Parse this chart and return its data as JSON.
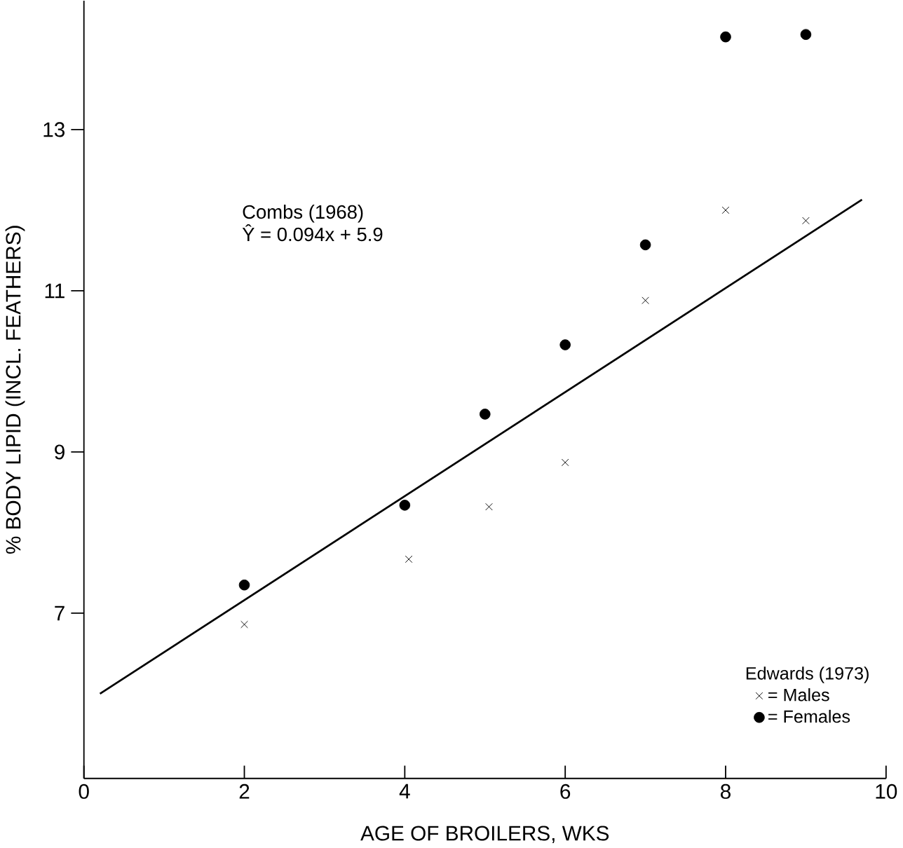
{
  "chart_data": {
    "type": "scatter",
    "xlabel": "AGE OF BROILERS, WKS",
    "ylabel": "% BODY LIPID (INCL. FEATHERS)",
    "legend_title": "Edwards (1973)",
    "annotations": [
      "Combs (1968)",
      "Ŷ = 0.094x + 5.9"
    ],
    "series": [
      {
        "name": "= Males",
        "color": "#000000",
        "marker": "cross",
        "x": [
          2,
          4.05,
          5.05,
          6,
          7,
          8,
          9
        ],
        "values": [
          6.86,
          7.67,
          8.32,
          8.87,
          10.88,
          12.0,
          11.87
        ]
      },
      {
        "name": "= Females",
        "color": "#000000",
        "marker": "circle",
        "x": [
          2,
          4,
          5,
          6,
          7,
          8,
          9
        ],
        "values": [
          7.35,
          8.34,
          9.47,
          10.33,
          11.57,
          14.15,
          14.18
        ]
      },
      {
        "type": "line",
        "color": "#000000",
        "marker": "none",
        "line_style": "solid",
        "x": [
          0.2,
          9.7
        ],
        "values": [
          6.0,
          12.13
        ]
      }
    ],
    "xlim": [
      0,
      10
    ],
    "ylim": [
      4.95,
      14.6
    ],
    "xticks": [
      0,
      2,
      4,
      6,
      8,
      10
    ],
    "yticks": [
      7,
      9,
      11,
      13
    ],
    "grid": false,
    "legend": "bottom right"
  }
}
